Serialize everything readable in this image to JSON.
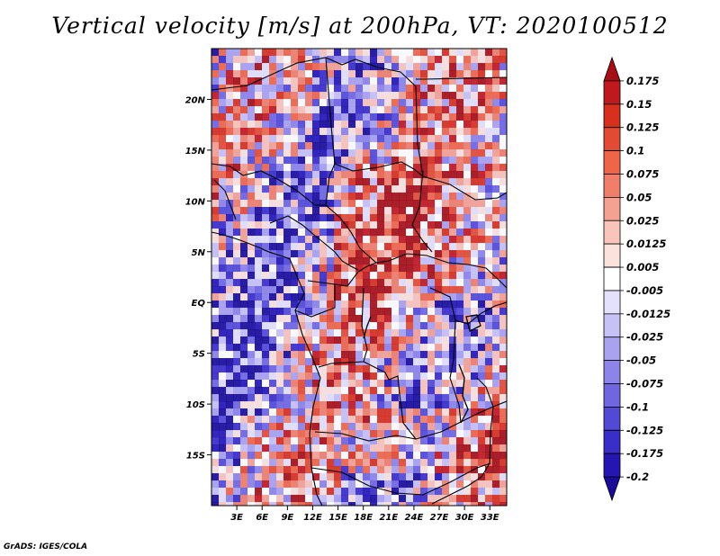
{
  "title": "Vertical velocity [m/s] at 200hPa, VT: 2020100512",
  "credit": "GrADS: IGES/COLA",
  "map": {
    "lon_range": [
      0,
      35
    ],
    "lat_range": [
      -20,
      25
    ],
    "lon_ticks": [
      "3E",
      "6E",
      "9E",
      "12E",
      "15E",
      "18E",
      "21E",
      "24E",
      "27E",
      "30E",
      "33E"
    ],
    "lat_ticks": [
      "20N",
      "15N",
      "10N",
      "5N",
      "EQ",
      "5S",
      "10S",
      "15S"
    ]
  },
  "colorbar": {
    "labels": [
      "0.175",
      "0.15",
      "0.125",
      "0.1",
      "0.075",
      "0.05",
      "0.025",
      "0.0125",
      "0.005",
      "-0.005",
      "-0.0125",
      "-0.025",
      "-0.05",
      "-0.075",
      "-0.1",
      "-0.125",
      "-0.175",
      "-0.2"
    ],
    "colors": [
      "#a50f15",
      "#c0181f",
      "#d7301f",
      "#e34a33",
      "#ef6548",
      "#f07e6b",
      "#f4a194",
      "#f8c4bb",
      "#fbe2dd",
      "#ffffff",
      "#e3e1fb",
      "#c7c2f6",
      "#a9a2ef",
      "#8c84e8",
      "#6f66e0",
      "#5249d6",
      "#3a2ec8",
      "#2516b4",
      "#1a0c98"
    ]
  }
}
